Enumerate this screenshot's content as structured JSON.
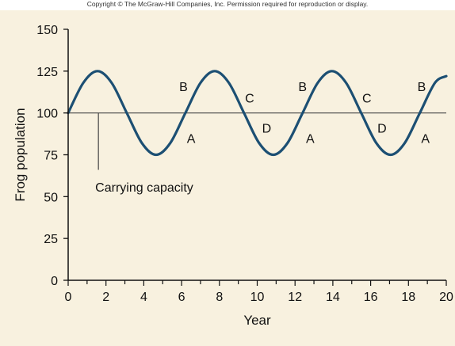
{
  "copyright": "Copyright © The McGraw-Hill Companies, Inc. Permission required for reproduction or display.",
  "colors": {
    "background": "#f8f1df",
    "curve": "#1c4f73",
    "reference_line": "#444444",
    "axis": "#111111"
  },
  "chart_data": {
    "type": "line",
    "xlabel": "Year",
    "ylabel": "Frog population",
    "xlim": [
      0,
      20
    ],
    "ylim": [
      0,
      150
    ],
    "x_ticks": [
      0,
      2,
      4,
      6,
      8,
      10,
      12,
      14,
      16,
      18,
      20
    ],
    "y_ticks": [
      0,
      25,
      50,
      75,
      100,
      125,
      150
    ],
    "grid": false,
    "series": [
      {
        "x": [
          0,
          0.8,
          1.55,
          2.3,
          3.1,
          3.9,
          4.65,
          5.4,
          6.2,
          7.0,
          7.75,
          8.5,
          9.3,
          10.1,
          10.85,
          11.6,
          12.4,
          13.2,
          13.95,
          14.7,
          15.5,
          16.3,
          17.05,
          17.8,
          18.6,
          19.4,
          20
        ],
        "y": [
          100,
          118,
          125,
          118,
          100,
          82,
          75,
          82,
          100,
          118,
          125,
          118,
          100,
          82,
          75,
          82,
          100,
          118,
          125,
          118,
          100,
          82,
          75,
          82,
          100,
          118,
          122
        ]
      }
    ],
    "reference_line": {
      "y": 100,
      "label": "Carrying capacity",
      "label_x": 1.6,
      "label_y": 54
    },
    "point_labels": [
      {
        "text": "A",
        "x": 6.5,
        "y": 85
      },
      {
        "text": "B",
        "x": 6.1,
        "y": 116
      },
      {
        "text": "C",
        "x": 9.6,
        "y": 109
      },
      {
        "text": "D",
        "x": 10.5,
        "y": 91
      },
      {
        "text": "A",
        "x": 12.8,
        "y": 85
      },
      {
        "text": "B",
        "x": 12.4,
        "y": 116
      },
      {
        "text": "C",
        "x": 15.8,
        "y": 109
      },
      {
        "text": "D",
        "x": 16.6,
        "y": 91
      },
      {
        "text": "A",
        "x": 18.9,
        "y": 85
      },
      {
        "text": "B",
        "x": 18.7,
        "y": 116
      }
    ]
  }
}
